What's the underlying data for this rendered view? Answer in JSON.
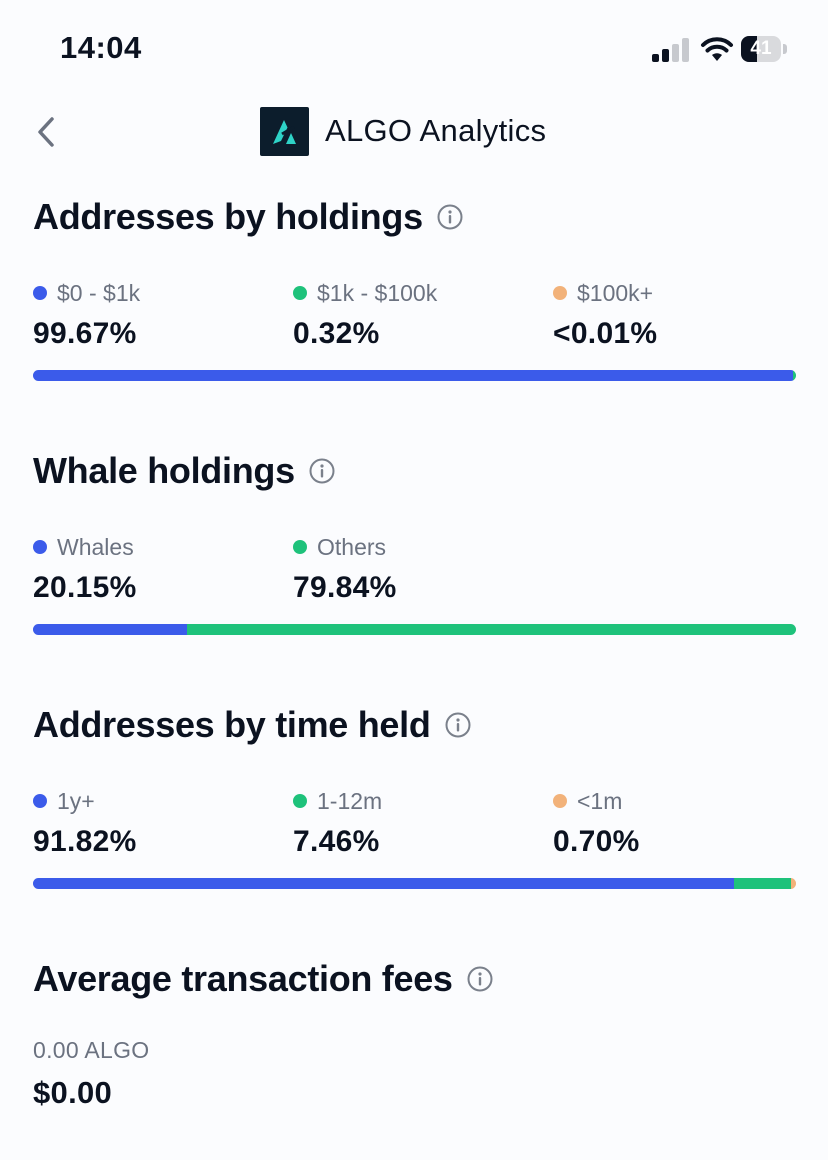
{
  "status_bar": {
    "time": "14:04",
    "battery": "41",
    "battery_level": 0.41
  },
  "header": {
    "title": "ALGO Analytics",
    "logo_icon": "algorand-logo-icon"
  },
  "colors": {
    "blue": "#3b5bea",
    "green": "#1ec27b",
    "orange": "#f2b27a"
  },
  "holdings": {
    "title": "Addresses by holdings",
    "items": [
      {
        "label": "$0 - $1k",
        "value": "99.67%",
        "share": 99.67,
        "color": "#3b5bea"
      },
      {
        "label": "$1k - $100k",
        "value": "0.32%",
        "share": 0.32,
        "color": "#1ec27b"
      },
      {
        "label": "$100k+",
        "value": "<0.01%",
        "share": 0.01,
        "color": "#f2b27a"
      }
    ]
  },
  "whales": {
    "title": "Whale holdings",
    "items": [
      {
        "label": "Whales",
        "value": "20.15%",
        "share": 20.15,
        "color": "#3b5bea"
      },
      {
        "label": "Others",
        "value": "79.84%",
        "share": 79.84,
        "color": "#1ec27b"
      }
    ]
  },
  "time_held": {
    "title": "Addresses by time held",
    "items": [
      {
        "label": "1y+",
        "value": "91.82%",
        "share": 91.82,
        "color": "#3b5bea"
      },
      {
        "label": "1-12m",
        "value": "7.46%",
        "share": 7.46,
        "color": "#1ec27b"
      },
      {
        "label": "<1m",
        "value": "0.70%",
        "share": 0.7,
        "color": "#f2b27a"
      }
    ]
  },
  "fees": {
    "title": "Average transaction fees",
    "algo": "0.00 ALGO",
    "usd": "$0.00"
  }
}
